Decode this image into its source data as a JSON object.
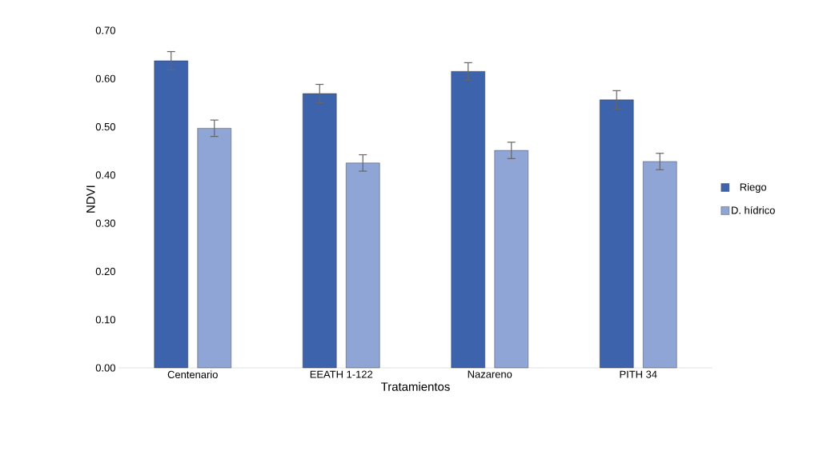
{
  "chart_data": {
    "type": "bar",
    "xlabel": "Tratamientos",
    "ylabel": "NDVI",
    "categories": [
      "Centenario",
      "EEATH 1-122",
      "Nazareno",
      "PITH 34"
    ],
    "series": [
      {
        "name": "Riego",
        "color": "#3c63ac",
        "values": [
          0.637,
          0.569,
          0.615,
          0.556
        ],
        "errors": [
          0.019,
          0.019,
          0.018,
          0.019
        ]
      },
      {
        "name": "D. hídrico",
        "color": "#8fa5d6",
        "values": [
          0.497,
          0.425,
          0.451,
          0.428
        ],
        "errors": [
          0.017,
          0.017,
          0.017,
          0.017
        ]
      }
    ],
    "ylim": [
      0,
      0.7
    ],
    "yticks": [
      {
        "value": 0,
        "label": "0.00"
      },
      {
        "value": 0.1,
        "label": "0.10"
      },
      {
        "value": 0.2,
        "label": "0.20"
      },
      {
        "value": 0.3,
        "label": "0.30"
      },
      {
        "value": 0.4,
        "label": "0.40"
      },
      {
        "value": 0.5,
        "label": "0.50"
      },
      {
        "value": 0.6,
        "label": "0.60"
      },
      {
        "value": 0.7,
        "label": "0.70"
      }
    ],
    "legend": "right"
  }
}
